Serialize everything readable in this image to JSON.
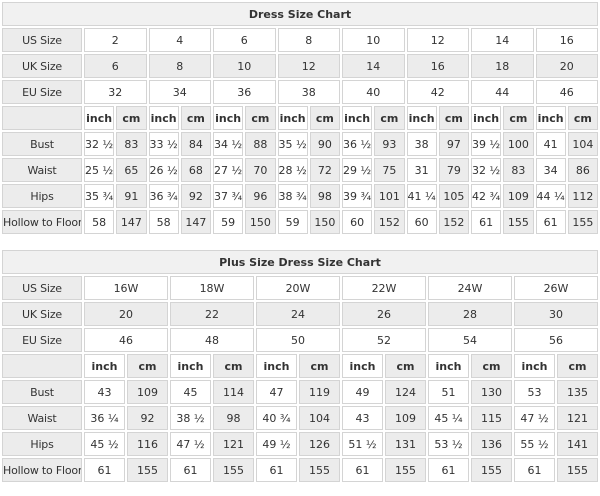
{
  "colors": {
    "shade": "#ececec",
    "title_bg": "#f1f1f1",
    "border": "#d4d4d4",
    "text": "#333333",
    "title_text": "#111111"
  },
  "chart_data": [
    {
      "type": "table",
      "title": "Dress Size Chart",
      "size_rows": [
        {
          "label": "US Size",
          "shaded": false,
          "values": [
            "2",
            "4",
            "6",
            "8",
            "10",
            "12",
            "14",
            "16"
          ]
        },
        {
          "label": "UK Size",
          "shaded": true,
          "values": [
            "6",
            "8",
            "10",
            "12",
            "14",
            "16",
            "18",
            "20"
          ]
        },
        {
          "label": "EU Size",
          "shaded": false,
          "values": [
            "32",
            "34",
            "36",
            "38",
            "40",
            "42",
            "44",
            "46"
          ]
        }
      ],
      "unit_row": {
        "inch_label": "inch",
        "cm_label": "cm"
      },
      "measure_rows": [
        {
          "label": "Bust",
          "inch": [
            "32 ½",
            "33 ½",
            "34 ½",
            "35 ½",
            "36 ½",
            "38",
            "39 ½",
            "41"
          ],
          "cm": [
            "83",
            "84",
            "88",
            "90",
            "93",
            "97",
            "100",
            "104"
          ]
        },
        {
          "label": "Waist",
          "inch": [
            "25 ½",
            "26 ½",
            "27 ½",
            "28 ½",
            "29 ½",
            "31",
            "32 ½",
            "34"
          ],
          "cm": [
            "65",
            "68",
            "70",
            "72",
            "75",
            "79",
            "83",
            "86"
          ]
        },
        {
          "label": "Hips",
          "inch": [
            "35 ¾",
            "36 ¾",
            "37 ¾",
            "38 ¾",
            "39 ¾",
            "41 ¼",
            "42 ¾",
            "44 ¼"
          ],
          "cm": [
            "91",
            "92",
            "96",
            "98",
            "101",
            "105",
            "109",
            "112"
          ]
        },
        {
          "label": "Hollow to Floor",
          "inch": [
            "58",
            "58",
            "59",
            "59",
            "60",
            "60",
            "61",
            "61"
          ],
          "cm": [
            "147",
            "147",
            "150",
            "150",
            "152",
            "152",
            "155",
            "155"
          ]
        }
      ]
    },
    {
      "type": "table",
      "title": "Plus Size Dress Size Chart",
      "size_rows": [
        {
          "label": "US Size",
          "shaded": false,
          "values": [
            "16W",
            "18W",
            "20W",
            "22W",
            "24W",
            "26W"
          ]
        },
        {
          "label": "UK Size",
          "shaded": true,
          "values": [
            "20",
            "22",
            "24",
            "26",
            "28",
            "30"
          ]
        },
        {
          "label": "EU Size",
          "shaded": false,
          "values": [
            "46",
            "48",
            "50",
            "52",
            "54",
            "56"
          ]
        }
      ],
      "unit_row": {
        "inch_label": "inch",
        "cm_label": "cm"
      },
      "measure_rows": [
        {
          "label": "Bust",
          "inch": [
            "43",
            "45",
            "47",
            "49",
            "51",
            "53"
          ],
          "cm": [
            "109",
            "114",
            "119",
            "124",
            "130",
            "135"
          ]
        },
        {
          "label": "Waist",
          "inch": [
            "36 ¼",
            "38 ½",
            "40 ¾",
            "43",
            "45 ¼",
            "47 ½"
          ],
          "cm": [
            "92",
            "98",
            "104",
            "109",
            "115",
            "121"
          ]
        },
        {
          "label": "Hips",
          "inch": [
            "45 ½",
            "47 ½",
            "49 ½",
            "51 ½",
            "53 ½",
            "55 ½"
          ],
          "cm": [
            "116",
            "121",
            "126",
            "131",
            "136",
            "141"
          ]
        },
        {
          "label": "Hollow to Floor",
          "inch": [
            "61",
            "61",
            "61",
            "61",
            "61",
            "61"
          ],
          "cm": [
            "155",
            "155",
            "155",
            "155",
            "155",
            "155"
          ]
        }
      ]
    }
  ]
}
